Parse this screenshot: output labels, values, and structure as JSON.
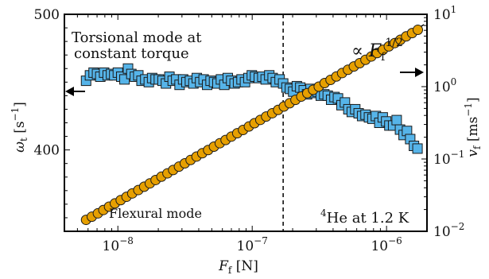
{
  "chart_data": {
    "type": "scatter",
    "title": "",
    "xlabel": "F_f [N]",
    "ylabel_left": "ω_t [s⁻¹]",
    "ylabel_right": "v_f [ms⁻¹]",
    "x_scale": "log",
    "xlim": [
      4e-09,
      2e-06
    ],
    "ylim_left": [
      340,
      500
    ],
    "ylim_right": [
      0.01,
      10
    ],
    "right_scale": "log",
    "x_ticks": [
      {
        "value": 1e-08,
        "base": "10",
        "exp": "−8"
      },
      {
        "value": 1e-07,
        "base": "10",
        "exp": "−7"
      },
      {
        "value": 1e-06,
        "base": "10",
        "exp": "−6"
      }
    ],
    "left_ticks": [
      {
        "value": 400,
        "label": "400"
      },
      {
        "value": 500,
        "label": "500"
      }
    ],
    "right_ticks": [
      {
        "value": 0.01,
        "base": "10",
        "exp": "−2"
      },
      {
        "value": 0.1,
        "base": "10",
        "exp": "−1"
      },
      {
        "value": 1,
        "base": "10",
        "exp": "0"
      },
      {
        "value": 10,
        "base": "10",
        "exp": "1"
      }
    ],
    "vline_x": 1.7e-07,
    "series": [
      {
        "name": "Torsional mode at constant torque",
        "axis": "left",
        "marker": "square",
        "color": "#56B4E9",
        "x": [
          5.8e-09,
          6.2e-09,
          6.6e-09,
          7e-09,
          7.4e-09,
          7.9e-09,
          8.4e-09,
          8.9e-09,
          9.4e-09,
          1e-08,
          1.06e-08,
          1.12e-08,
          1.19e-08,
          1.26e-08,
          1.34e-08,
          1.42e-08,
          1.5e-08,
          1.6e-08,
          1.7e-08,
          1.8e-08,
          1.91e-08,
          2.02e-08,
          2.15e-08,
          2.28e-08,
          2.42e-08,
          2.56e-08,
          2.72e-08,
          2.88e-08,
          3.06e-08,
          3.24e-08,
          3.44e-08,
          3.65e-08,
          3.87e-08,
          4.1e-08,
          4.35e-08,
          4.62e-08,
          4.9e-08,
          5.2e-08,
          5.51e-08,
          5.85e-08,
          6.2e-08,
          6.58e-08,
          6.98e-08,
          7.4e-08,
          7.85e-08,
          8.33e-08,
          8.84e-08,
          9.37e-08,
          9.94e-08,
          1.05e-07,
          1.12e-07,
          1.19e-07,
          1.26e-07,
          1.34e-07,
          1.42e-07,
          1.5e-07,
          1.6e-07,
          1.7e-07,
          1.8e-07,
          1.91e-07,
          2.02e-07,
          2.15e-07,
          2.28e-07,
          2.42e-07,
          2.56e-07,
          2.72e-07,
          2.88e-07,
          3.06e-07,
          3.24e-07,
          3.44e-07,
          3.65e-07,
          3.87e-07,
          4.1e-07,
          4.35e-07,
          4.62e-07,
          4.9e-07,
          5.2e-07,
          5.51e-07,
          5.85e-07,
          6.2e-07,
          6.58e-07,
          6.98e-07,
          7.4e-07,
          7.85e-07,
          8.33e-07,
          8.84e-07,
          9.37e-07,
          9.94e-07,
          1.05e-06,
          1.12e-06,
          1.19e-06,
          1.26e-06,
          1.34e-06,
          1.42e-06,
          1.5e-06,
          1.6e-06,
          1.7e-06
        ],
        "y": [
          451,
          455,
          457,
          456,
          454,
          457,
          455,
          456,
          455,
          457,
          454,
          452,
          460,
          456,
          454,
          455,
          451,
          452,
          450,
          453,
          452,
          452,
          451,
          449,
          454,
          451,
          452,
          448,
          452,
          450,
          451,
          449,
          453,
          450,
          452,
          448,
          451,
          450,
          449,
          452,
          448,
          453,
          451,
          449,
          450,
          452,
          450,
          453,
          455,
          454,
          453,
          454,
          452,
          455,
          453,
          450,
          452,
          449,
          446,
          445,
          443,
          447,
          446,
          444,
          441,
          445,
          442,
          443,
          440,
          441,
          440,
          437,
          439,
          438,
          433,
          435,
          430,
          428,
          430,
          427,
          425,
          426,
          424,
          423,
          425,
          420,
          424,
          421,
          418,
          418,
          422,
          415,
          411,
          414,
          408,
          403,
          401
        ]
      },
      {
        "name": "Flexural mode",
        "axis": "right",
        "marker": "circle",
        "color": "#E69F00",
        "x": [
          5.8e-09,
          6.4e-09,
          7.1e-09,
          7.8e-09,
          8.6e-09,
          9.5e-09,
          1.05e-08,
          1.16e-08,
          1.28e-08,
          1.42e-08,
          1.57e-08,
          1.73e-08,
          1.91e-08,
          2.11e-08,
          2.34e-08,
          2.58e-08,
          2.85e-08,
          3.15e-08,
          3.48e-08,
          3.85e-08,
          4.25e-08,
          4.7e-08,
          5.19e-08,
          5.74e-08,
          6.34e-08,
          7e-08,
          7.74e-08,
          8.55e-08,
          9.45e-08,
          1.04e-07,
          1.15e-07,
          1.27e-07,
          1.41e-07,
          1.56e-07,
          1.72e-07,
          1.9e-07,
          2.1e-07,
          2.32e-07,
          2.57e-07,
          2.84e-07,
          3.13e-07,
          3.46e-07,
          3.83e-07,
          4.23e-07,
          4.67e-07,
          5.16e-07,
          5.71e-07,
          6.31e-07,
          6.97e-07,
          7.7e-07,
          8.51e-07,
          9.41e-07,
          1.04e-06,
          1.15e-06,
          1.27e-06,
          1.4e-06,
          1.55e-06,
          1.71e-06
        ],
        "y": [
          0.0144,
          0.0159,
          0.0177,
          0.0197,
          0.0219,
          0.0243,
          0.027,
          0.03,
          0.0334,
          0.0372,
          0.0414,
          0.046,
          0.0512,
          0.0569,
          0.0633,
          0.0704,
          0.0783,
          0.087,
          0.0968,
          0.108,
          0.12,
          0.133,
          0.148,
          0.165,
          0.183,
          0.204,
          0.227,
          0.252,
          0.281,
          0.312,
          0.347,
          0.386,
          0.429,
          0.477,
          0.531,
          0.59,
          0.656,
          0.73,
          0.812,
          0.903,
          1.0,
          1.12,
          1.24,
          1.38,
          1.54,
          1.71,
          1.9,
          2.11,
          2.35,
          2.61,
          2.91,
          3.23,
          3.6,
          4.0,
          4.45,
          4.95,
          5.5,
          6.1
        ]
      }
    ],
    "fit_line": {
      "axis": "right",
      "x": [
        5.8e-09,
        1.9e-06
      ],
      "y": [
        0.0144,
        7.2
      ]
    },
    "annotations": {
      "torsional_line1": "Torsional mode at",
      "torsional_line2": "constant torque",
      "flexural": "Flexural mode",
      "scaling_prefix": "∝ ",
      "scaling_F": "F",
      "scaling_sub": "f",
      "scaling_exp": "1/2",
      "helium_sup": "4",
      "helium_text": "He at 1.2 K"
    }
  }
}
